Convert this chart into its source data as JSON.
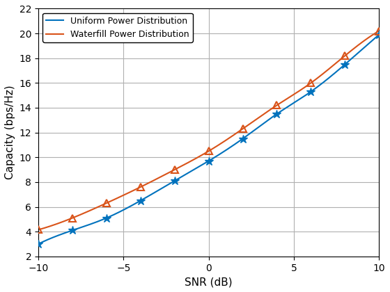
{
  "xlabel": "SNR (dB)",
  "ylabel": "Capacity (bps/Hz)",
  "xlim": [
    -10,
    10
  ],
  "ylim": [
    2,
    22
  ],
  "xticks": [
    -10,
    -5,
    0,
    5,
    10
  ],
  "yticks": [
    2,
    4,
    6,
    8,
    10,
    12,
    14,
    16,
    18,
    20,
    22
  ],
  "uniform_color": "#0072BD",
  "waterfill_color": "#D95319",
  "uniform_label": "Uniform Power Distribution",
  "waterfill_label": "Waterfill Power Distribution",
  "snr_points": [
    -10,
    -8,
    -6,
    -4,
    -2,
    0,
    2,
    4,
    6,
    8,
    10
  ],
  "uniform_values": [
    3.0,
    4.1,
    5.1,
    6.5,
    8.1,
    9.7,
    11.5,
    13.5,
    15.3,
    17.5,
    19.9
  ],
  "waterfill_values": [
    4.15,
    5.1,
    6.3,
    7.6,
    9.0,
    10.5,
    12.3,
    14.2,
    16.0,
    18.2,
    20.2
  ],
  "background_color": "#ffffff",
  "grid_color": "#b0b0b0"
}
